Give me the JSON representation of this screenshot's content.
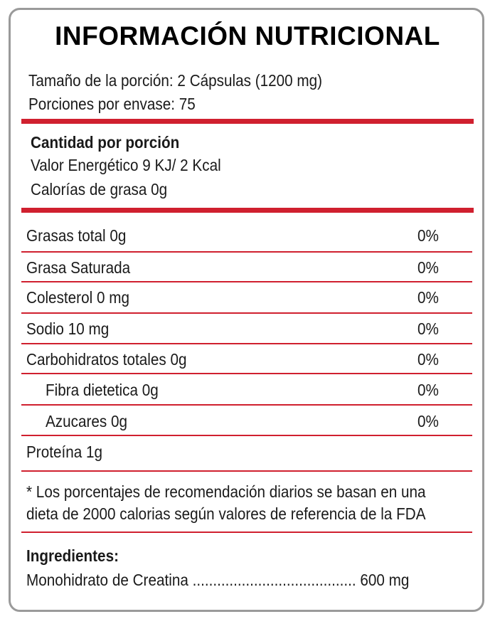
{
  "title": "INFORMACIÓN NUTRICIONAL",
  "serving": {
    "size": "Tamaño de la porción:  2 Cápsulas (1200 mg)",
    "per_container": "Porciones por envase: 75"
  },
  "amount": {
    "heading": "Cantidad por porción",
    "energy": "Valor Energético 9 KJ/ 2 Kcal",
    "fat_calories": "Calorías de grasa 0g"
  },
  "nutrients": [
    {
      "name": "Grasas total 0g",
      "pct": "0%"
    },
    {
      "name": "Grasa Saturada",
      "pct": "0%"
    },
    {
      "name": "Colesterol 0 mg",
      "pct": "0%"
    },
    {
      "name": "Sodio 10 mg",
      "pct": "0%"
    },
    {
      "name": "Carbohidratos totales 0g",
      "pct": "0%"
    },
    {
      "name": "Fibra dietetica 0g",
      "pct": "0%"
    },
    {
      "name": "Azucares 0g",
      "pct": "0%"
    },
    {
      "name": "Proteína 1g",
      "pct": ""
    }
  ],
  "footnote": {
    "line1": "* Los porcentajes de recomendación diarios se basan en una",
    "line2": "dieta de 2000 calorias según valores de referencia de la FDA"
  },
  "ingredients": {
    "heading": "Ingredientes:",
    "item": "Monohidrato de Creatina ........................................ 600 mg"
  },
  "colors": {
    "accent": "#d0202f",
    "border": "#9a9a9a"
  }
}
